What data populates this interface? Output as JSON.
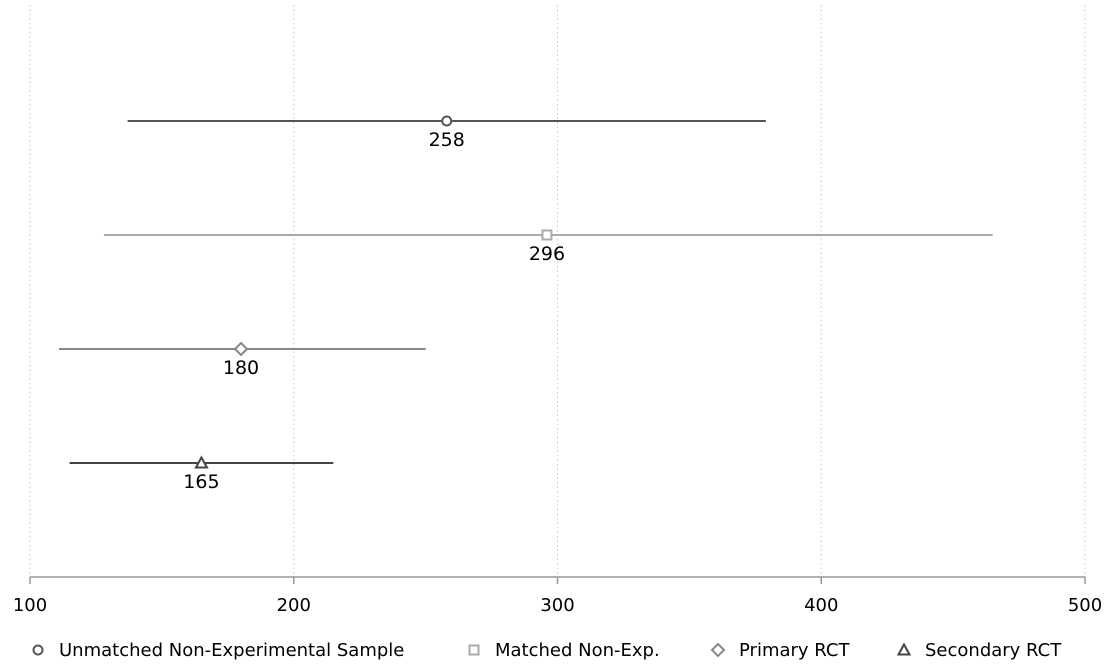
{
  "chart_data": {
    "type": "dot-interval",
    "xlim": [
      100,
      500
    ],
    "xticks": [
      100,
      200,
      300,
      400,
      500
    ],
    "xtick_labels": [
      "100",
      "200",
      "300",
      "400",
      "500"
    ],
    "grid": "vertical dotted",
    "legend_position": "bottom",
    "series": [
      {
        "name": "Unmatched Non-Experimental Sample",
        "marker": "circle",
        "color": "#555555",
        "estimate": 258,
        "low": 137,
        "high": 379,
        "label": "258"
      },
      {
        "name": "Matched Non-Exp.",
        "marker": "square",
        "color": "#aaaaaa",
        "estimate": 296,
        "low": 128,
        "high": 465,
        "label": "296"
      },
      {
        "name": "Primary RCT",
        "marker": "diamond",
        "color": "#888888",
        "estimate": 180,
        "low": 111,
        "high": 250,
        "label": "180"
      },
      {
        "name": "Secondary RCT",
        "marker": "triangle",
        "color": "#444444",
        "estimate": 165,
        "low": 115,
        "high": 215,
        "label": "165"
      }
    ]
  }
}
